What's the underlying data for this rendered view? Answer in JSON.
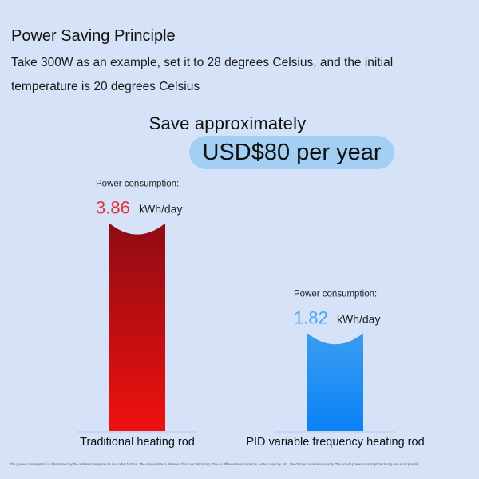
{
  "header": {
    "title": "Power Saving Principle",
    "subtitle": "Take 300W as an example, set it to 28 degrees Celsius, and the initial temperature is 20 degrees Celsius"
  },
  "savings": {
    "label": "Save approximately",
    "amount": "USD$80 per year"
  },
  "chart_data": {
    "type": "bar",
    "title": "",
    "xlabel": "",
    "ylabel": "",
    "categories": [
      "Traditional heating rod",
      "PID variable frequency heating rod"
    ],
    "values": [
      3.86,
      1.82
    ],
    "unit": "kWh/day",
    "value_label_prefix": "Power consumption:",
    "ylim": [
      0,
      4.3
    ],
    "grid": false,
    "colors": {
      "bar_1_top": "#8e0c12",
      "bar_1_bottom": "#f01010",
      "bar_2_top": "#3a9cf2",
      "bar_2_bottom": "#0a82f6",
      "value_1": "#e0343d",
      "value_2": "#4ea6ee"
    }
  },
  "footnote": "The power consumption is determined by the ambient temperature and other factors. The above data is obtained from our laboratory. Due to different environments, water capacity, etc., the data is for reference only. The actual power consumption during use shall prevail."
}
